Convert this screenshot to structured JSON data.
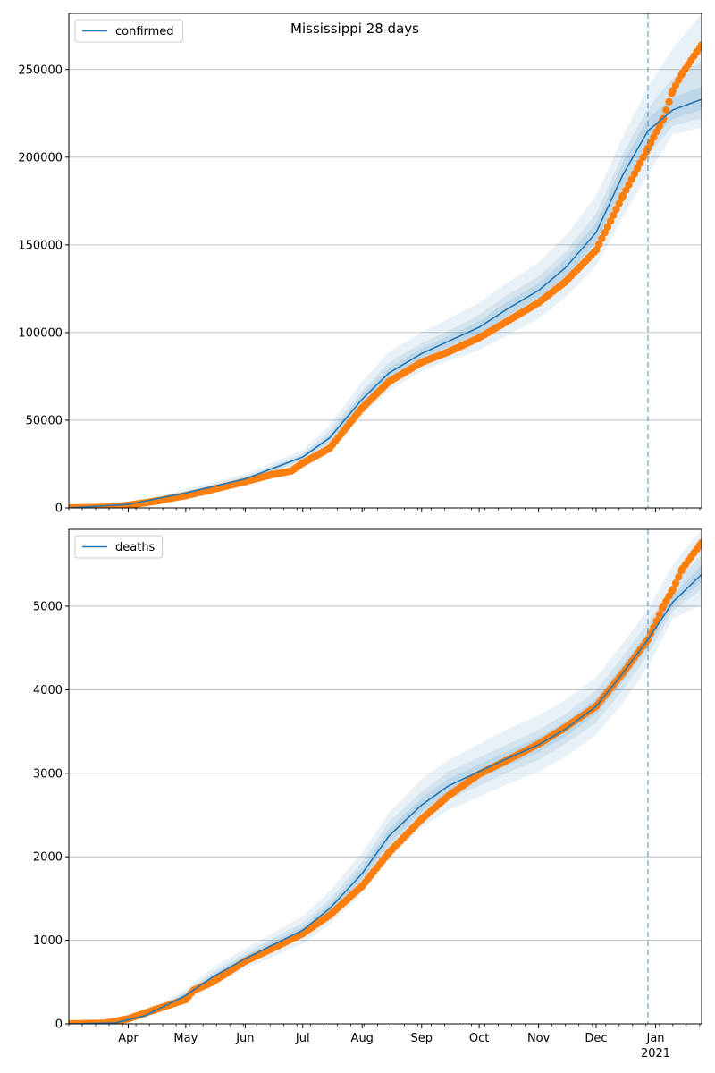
{
  "figure": {
    "title": "Mississippi 28 days"
  },
  "colors": {
    "model_line": "#1f77b4",
    "observed": "#ff7f0e",
    "band": "#1f77b4",
    "grid": "#b0b0b0",
    "axis": "#000000",
    "forecast_marker": "#1f77b4"
  },
  "chart_data": [
    {
      "type": "line",
      "legend": "confirmed",
      "legend_position": "top-left",
      "grid": "y",
      "x_axis": {
        "type": "date",
        "range": [
          "2020-03-01",
          "2021-01-25"
        ],
        "tick_labels": [
          {
            "date": "2020-04-01",
            "label": "Apr"
          },
          {
            "date": "2020-05-01",
            "label": "May"
          },
          {
            "date": "2020-06-01",
            "label": "Jun"
          },
          {
            "date": "2020-07-01",
            "label": "Jul"
          },
          {
            "date": "2020-08-01",
            "label": "Aug"
          },
          {
            "date": "2020-09-01",
            "label": "Sep"
          },
          {
            "date": "2020-10-01",
            "label": "Oct"
          },
          {
            "date": "2020-11-01",
            "label": "Nov"
          },
          {
            "date": "2020-12-01",
            "label": "Dec"
          },
          {
            "date": "2021-01-01",
            "label": "Jan",
            "sublabel": "2021"
          }
        ],
        "tick_labels_visible": false
      },
      "y_axis": {
        "range": [
          0,
          282000
        ],
        "ticks": [
          0,
          50000,
          100000,
          150000,
          200000,
          250000
        ],
        "tick_labels": [
          "0",
          "50000",
          "100000",
          "150000",
          "200000",
          "250000"
        ]
      },
      "forecast_start": "2020-12-28",
      "model": {
        "dates": [
          "2020-03-01",
          "2020-04-01",
          "2020-05-01",
          "2020-06-01",
          "2020-07-01",
          "2020-07-15",
          "2020-08-01",
          "2020-08-15",
          "2020-09-01",
          "2020-09-15",
          "2020-10-01",
          "2020-10-15",
          "2020-11-01",
          "2020-11-15",
          "2020-12-01",
          "2020-12-15",
          "2020-12-28",
          "2021-01-10",
          "2021-01-25"
        ],
        "values": [
          0,
          2000,
          8500,
          16500,
          29000,
          40000,
          62000,
          77000,
          88000,
          95000,
          103000,
          113000,
          124000,
          137000,
          157000,
          190000,
          215000,
          227000,
          233000
        ],
        "bands": [
          {
            "level": "outer",
            "lower": [
              0,
              1500,
              7000,
              14000,
              25000,
              34000,
              53000,
              67000,
              78000,
              84000,
              90000,
              98000,
              108000,
              120000,
              138000,
              166000,
              190000,
              213000,
              217000
            ],
            "upper": [
              0,
              2600,
              10500,
              19500,
              33000,
              47000,
              72000,
              89000,
              100000,
              108000,
              117000,
              128000,
              140000,
              155000,
              178000,
              212000,
              240000,
              262000,
              282000
            ]
          },
          {
            "level": "middle",
            "lower": [
              0,
              1700,
              7600,
              15000,
              27000,
              37000,
              56000,
              71000,
              82000,
              89000,
              96000,
              105000,
              115000,
              127000,
              146000,
              176000,
              201000,
              218000,
              222000
            ],
            "upper": [
              0,
              2300,
              9500,
              18000,
              31000,
              44000,
              67000,
              83000,
              94000,
              101000,
              110000,
              121000,
              132000,
              146000,
              168000,
              202000,
              228000,
              245000,
              255000
            ]
          },
          {
            "level": "inner",
            "lower": [
              0,
              1850,
              8000,
              15800,
              28000,
              38500,
              59000,
              74000,
              85000,
              92000,
              99500,
              109000,
              120000,
              132000,
              151500,
              183000,
              208000,
              222000,
              227000
            ],
            "upper": [
              0,
              2150,
              9000,
              17200,
              30000,
              41500,
              65000,
              80000,
              91000,
              98000,
              106500,
              117000,
              128000,
              142000,
              162500,
              197000,
              222000,
              234000,
              240000
            ]
          }
        ]
      },
      "observed": {
        "dates": [
          "2020-03-01",
          "2020-03-20",
          "2020-04-01",
          "2020-04-15",
          "2020-05-01",
          "2020-05-15",
          "2020-06-01",
          "2020-06-15",
          "2020-06-25",
          "2020-07-01",
          "2020-07-15",
          "2020-08-01",
          "2020-08-15",
          "2020-09-01",
          "2020-09-15",
          "2020-10-01",
          "2020-10-15",
          "2020-11-01",
          "2020-11-15",
          "2020-12-01",
          "2020-12-15",
          "2020-12-28",
          "2021-01-05",
          "2021-01-10",
          "2021-01-15",
          "2021-01-25"
        ],
        "values": [
          0,
          300,
          1500,
          3800,
          7000,
          10500,
          15000,
          19000,
          21000,
          25500,
          34000,
          57000,
          72000,
          83000,
          89000,
          97000,
          106000,
          117000,
          129000,
          147000,
          178000,
          205000,
          222000,
          238000,
          248000,
          264000
        ]
      }
    },
    {
      "type": "line",
      "legend": "deaths",
      "legend_position": "top-left",
      "grid": "y",
      "x_axis": {
        "type": "date",
        "range": [
          "2020-03-01",
          "2021-01-25"
        ],
        "tick_labels": [
          {
            "date": "2020-04-01",
            "label": "Apr"
          },
          {
            "date": "2020-05-01",
            "label": "May"
          },
          {
            "date": "2020-06-01",
            "label": "Jun"
          },
          {
            "date": "2020-07-01",
            "label": "Jul"
          },
          {
            "date": "2020-08-01",
            "label": "Aug"
          },
          {
            "date": "2020-09-01",
            "label": "Sep"
          },
          {
            "date": "2020-10-01",
            "label": "Oct"
          },
          {
            "date": "2020-11-01",
            "label": "Nov"
          },
          {
            "date": "2020-12-01",
            "label": "Dec"
          },
          {
            "date": "2021-01-01",
            "label": "Jan",
            "sublabel": "2021"
          }
        ],
        "tick_labels_visible": true
      },
      "y_axis": {
        "range": [
          0,
          5920
        ],
        "ticks": [
          0,
          1000,
          2000,
          3000,
          4000,
          5000
        ],
        "tick_labels": [
          "0",
          "1000",
          "2000",
          "3000",
          "4000",
          "5000"
        ]
      },
      "forecast_start": "2020-12-28",
      "model": {
        "dates": [
          "2020-03-01",
          "2020-03-25",
          "2020-04-10",
          "2020-05-01",
          "2020-05-15",
          "2020-06-01",
          "2020-06-15",
          "2020-07-01",
          "2020-07-15",
          "2020-08-01",
          "2020-08-15",
          "2020-09-01",
          "2020-09-15",
          "2020-10-01",
          "2020-10-15",
          "2020-11-01",
          "2020-11-15",
          "2020-12-01",
          "2020-12-15",
          "2020-12-28",
          "2021-01-10",
          "2021-01-25"
        ],
        "values": [
          0,
          10,
          100,
          340,
          560,
          780,
          940,
          1120,
          1380,
          1800,
          2250,
          2620,
          2850,
          3020,
          3170,
          3340,
          3530,
          3800,
          4200,
          4600,
          5050,
          5380
        ],
        "bands": [
          {
            "level": "outer",
            "lower": [
              0,
              5,
              70,
              270,
              460,
              660,
              800,
              960,
              1190,
              1560,
              1970,
              2350,
              2560,
              2720,
              2860,
              3020,
              3200,
              3460,
              3840,
              4270,
              4850,
              5020
            ],
            "upper": [
              0,
              16,
              130,
              420,
              670,
              900,
              1080,
              1290,
              1590,
              2050,
              2530,
              2930,
              3160,
              3350,
              3520,
              3690,
              3880,
              4150,
              4560,
              4960,
              5500,
              5920
            ]
          },
          {
            "level": "middle",
            "lower": [
              0,
              7,
              80,
              295,
              500,
              710,
              860,
              1030,
              1270,
              1660,
              2080,
              2460,
              2680,
              2850,
              3000,
              3160,
              3350,
              3610,
              4000,
              4420,
              4940,
              5200
            ],
            "upper": [
              0,
              14,
              120,
              385,
              620,
              850,
              1020,
              1210,
              1490,
              1940,
              2420,
              2780,
              3020,
              3190,
              3340,
              3520,
              3710,
              3990,
              4400,
              4800,
              5250,
              5620
            ]
          },
          {
            "level": "inner",
            "lower": [
              0,
              8,
              90,
              315,
              530,
              745,
              900,
              1075,
              1325,
              1730,
              2165,
              2540,
              2765,
              2935,
              3085,
              3250,
              3440,
              3705,
              4100,
              4510,
              4995,
              5290
            ],
            "upper": [
              0,
              12,
              110,
              365,
              590,
              815,
              980,
              1165,
              1435,
              1870,
              2335,
              2700,
              2935,
              3105,
              3255,
              3430,
              3620,
              3895,
              4300,
              4690,
              5125,
              5490
            ]
          }
        ]
      },
      "observed": {
        "dates": [
          "2020-03-01",
          "2020-03-20",
          "2020-04-01",
          "2020-04-15",
          "2020-05-01",
          "2020-05-05",
          "2020-05-15",
          "2020-06-01",
          "2020-06-15",
          "2020-07-01",
          "2020-07-15",
          "2020-08-01",
          "2020-08-15",
          "2020-09-01",
          "2020-09-15",
          "2020-10-01",
          "2020-10-15",
          "2020-11-01",
          "2020-11-15",
          "2020-12-01",
          "2020-12-15",
          "2020-12-28",
          "2021-01-05",
          "2021-01-10",
          "2021-01-15",
          "2021-01-25"
        ],
        "values": [
          0,
          8,
          60,
          170,
          290,
          400,
          500,
          750,
          900,
          1080,
          1300,
          1650,
          2050,
          2450,
          2730,
          2990,
          3150,
          3350,
          3550,
          3800,
          4200,
          4600,
          5000,
          5200,
          5450,
          5760
        ]
      }
    }
  ]
}
